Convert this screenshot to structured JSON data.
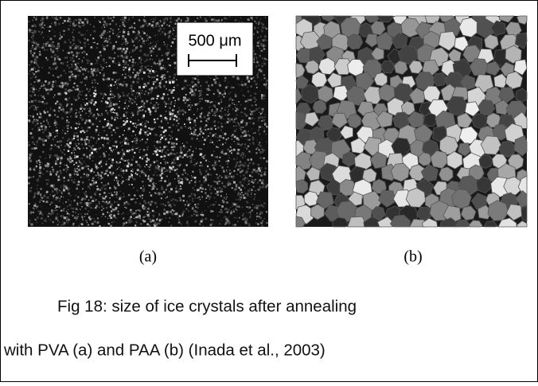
{
  "panels": [
    {
      "label": "(a)",
      "scale_bar": "500 μm"
    },
    {
      "label": "(b)"
    }
  ],
  "caption": {
    "lines": [
      "Fig 18: size of ice crystals after annealing",
      "with PVA (a) and PAA (b) (Inada et al., 2003)"
    ]
  }
}
